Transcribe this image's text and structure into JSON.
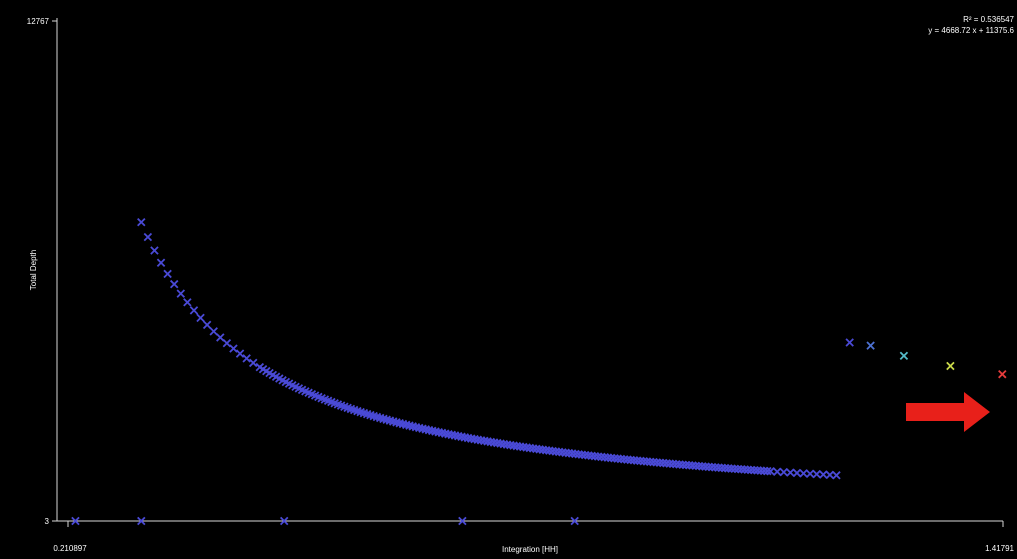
{
  "chart_data": {
    "type": "scatter",
    "title": "",
    "xlabel": "Integration [HH]",
    "ylabel": "Total Depth",
    "x_tick_labels": [
      "0.210897",
      "1.41791"
    ],
    "y_tick_labels": [
      "3",
      "12767"
    ],
    "xlim": [
      0.210897,
      1.41791
    ],
    "ylim": [
      3,
      12767
    ],
    "grid": false,
    "legend": "none",
    "annotations": {
      "r_squared": "R² = 0.536547",
      "equation": "y = 4668.72 x + 11375.6"
    },
    "color_scale": {
      "low": "#4a4ad6",
      "mid": "#55c8c8",
      "high_mid": "#c8e64a",
      "high": "#e63c3c"
    },
    "highlight_arrow_color": "#e8201a",
    "curve_model": {
      "form": "a / (x - b)",
      "a": 1240,
      "b": 0.143
    },
    "series": [
      {
        "marker": "x",
        "points": [
          [
            0.2205,
            3
          ],
          [
            0.3055,
            3
          ],
          [
            0.49,
            3
          ],
          [
            0.72,
            3
          ],
          [
            0.865,
            3
          ],
          [
            1.417,
            3750
          ],
          [
            1.35,
            3960
          ],
          [
            1.29,
            4220
          ],
          [
            1.247,
            4480
          ],
          [
            1.22,
            4560
          ]
        ]
      }
    ]
  }
}
